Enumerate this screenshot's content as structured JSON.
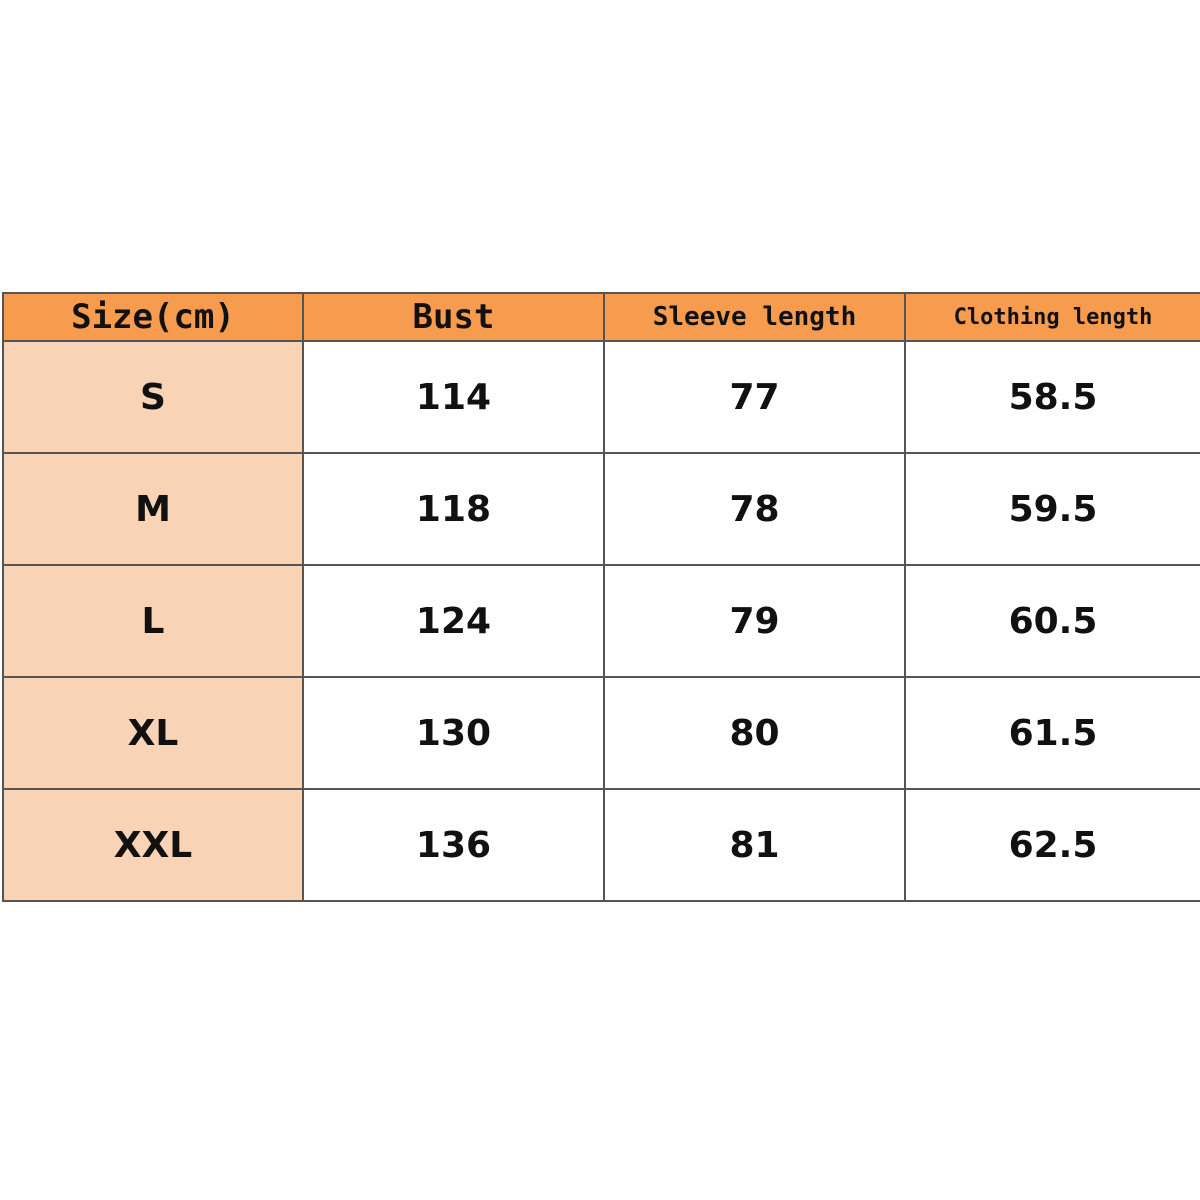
{
  "table": {
    "header": [
      "Size(cm)",
      "Bust",
      "Sleeve length",
      "Clothing length"
    ],
    "rows": [
      [
        "S",
        "114",
        "77",
        "58.5"
      ],
      [
        "M",
        "118",
        "78",
        "59.5"
      ],
      [
        "L",
        "124",
        "79",
        "60.5"
      ],
      [
        "XL",
        "130",
        "80",
        "61.5"
      ],
      [
        "XXL",
        "136",
        "81",
        "62.5"
      ]
    ]
  }
}
